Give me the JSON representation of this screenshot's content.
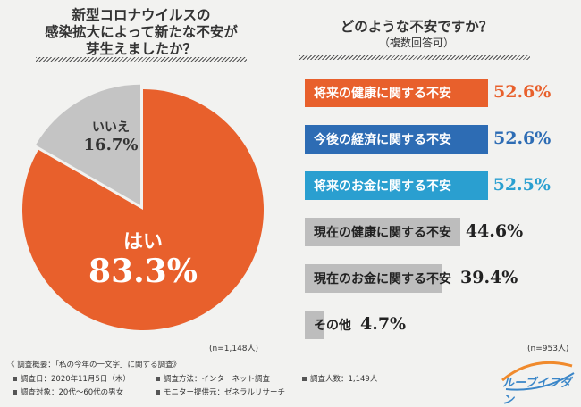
{
  "left": {
    "title_lines": [
      "新型コロナウイルスの",
      "感染拡大によって新たな不安が",
      "芽生えましたか？"
    ],
    "n_label": "(n=1,148人)"
  },
  "right": {
    "title": "どのような不安ですか？",
    "subtitle": "（複数回答可）",
    "n_label": "(n=953人)"
  },
  "colors": {
    "orange": "#e8602c",
    "blue": "#2d6cb4",
    "teal": "#2a9fd0",
    "gray": "#bdbdbd",
    "pie_gray": "#c4c4c4"
  },
  "chart_data": [
    {
      "type": "pie",
      "title": "新型コロナウイルスの感染拡大によって新たな不安が芽生えましたか？",
      "slices": [
        {
          "label": "はい",
          "value": 83.3,
          "display": "83.3%"
        },
        {
          "label": "いいえ",
          "value": 16.7,
          "display": "16.7%"
        }
      ]
    },
    {
      "type": "bar",
      "orientation": "horizontal",
      "title": "どのような不安ですか？（複数回答可）",
      "categories": [
        "将来の健康に関する不安",
        "今後の経済に関する不安",
        "将来のお金に関する不安",
        "現在の健康に関する不安",
        "現在のお金に関する不安",
        "その他"
      ],
      "values": [
        52.6,
        52.6,
        52.5,
        44.6,
        39.4,
        4.7
      ],
      "labels": [
        "52.6%",
        "52.6%",
        "52.5%",
        "44.6%",
        "39.4%",
        "4.7%"
      ],
      "colors": [
        "orange",
        "blue",
        "teal",
        "gray",
        "gray",
        "gray"
      ]
    }
  ],
  "footer": {
    "heading": "《 調査概要：「私の今年の一文字」に関する調査》",
    "items": [
      "調査日：2020年11月5日（木）",
      "調査方法：インターネット調査",
      "調査人数：1,149人",
      "調査対象：20代〜60代の男女",
      "モニター提供元：ゼネラルリサーチ"
    ],
    "logo": "ルーブイフダン"
  }
}
